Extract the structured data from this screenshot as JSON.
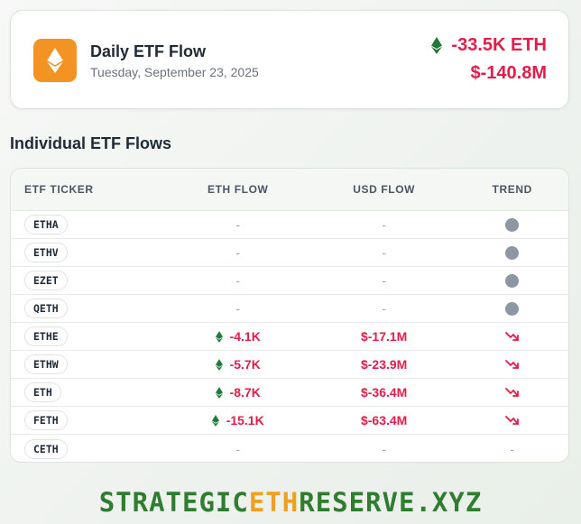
{
  "summary": {
    "title": "Daily ETF Flow",
    "date": "Tuesday, September 23, 2025",
    "eth_flow": "-33.5K ETH",
    "usd_flow": "$-140.8M"
  },
  "section_title": "Individual ETF Flows",
  "table": {
    "headers": [
      "ETF TICKER",
      "ETH FLOW",
      "USD FLOW",
      "TREND"
    ],
    "rows": [
      {
        "ticker": "ETHA",
        "eth": "-",
        "usd": "-",
        "trend": "neutral"
      },
      {
        "ticker": "ETHV",
        "eth": "-",
        "usd": "-",
        "trend": "neutral"
      },
      {
        "ticker": "EZET",
        "eth": "-",
        "usd": "-",
        "trend": "neutral"
      },
      {
        "ticker": "QETH",
        "eth": "-",
        "usd": "-",
        "trend": "neutral"
      },
      {
        "ticker": "ETHE",
        "eth": "-4.1K",
        "usd": "$-17.1M",
        "trend": "down"
      },
      {
        "ticker": "ETHW",
        "eth": "-5.7K",
        "usd": "$-23.9M",
        "trend": "down"
      },
      {
        "ticker": "ETH",
        "eth": "-8.7K",
        "usd": "$-36.4M",
        "trend": "down"
      },
      {
        "ticker": "FETH",
        "eth": "-15.1K",
        "usd": "$-63.4M",
        "trend": "down"
      },
      {
        "ticker": "CETH",
        "eth": "-",
        "usd": "-",
        "trend": "none"
      }
    ]
  },
  "footer": {
    "part1": "STRATEGIC",
    "part2": "ETH",
    "part3": "RESERVE.XYZ"
  },
  "colors": {
    "negative": "#e11d48",
    "eth_green": "#1f7a3a",
    "logo_orange": "#f39323",
    "neutral_dot": "#8d96a3"
  },
  "icons": {
    "logo": "ethereum-icon",
    "eth_flow": "eth-diamond-icon",
    "trend_down": "trend-down-arrow-icon",
    "trend_neutral": "neutral-dot-icon"
  }
}
